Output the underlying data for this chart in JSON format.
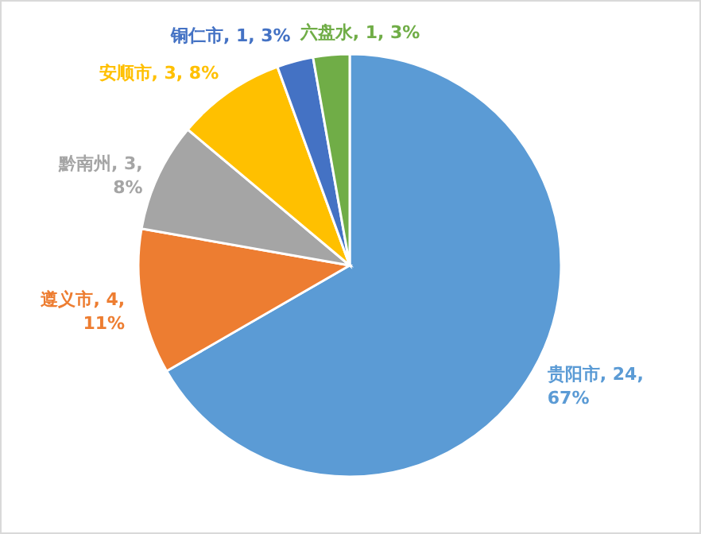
{
  "chart_data": {
    "type": "pie",
    "categories": [
      "贵阳市",
      "遵义市",
      "黔南州",
      "安顺市",
      "铜仁市",
      "六盘水"
    ],
    "values": [
      24,
      4,
      3,
      3,
      1,
      1
    ],
    "colors": [
      "#5b9bd5",
      "#ed7d31",
      "#a5a5a5",
      "#ffc000",
      "#4472c4",
      "#70ad47"
    ],
    "value_labels": [
      "24, 67%",
      "4, 11%",
      "3, 8%",
      "3, 8%",
      "1, 3%",
      "1, 3%"
    ]
  }
}
